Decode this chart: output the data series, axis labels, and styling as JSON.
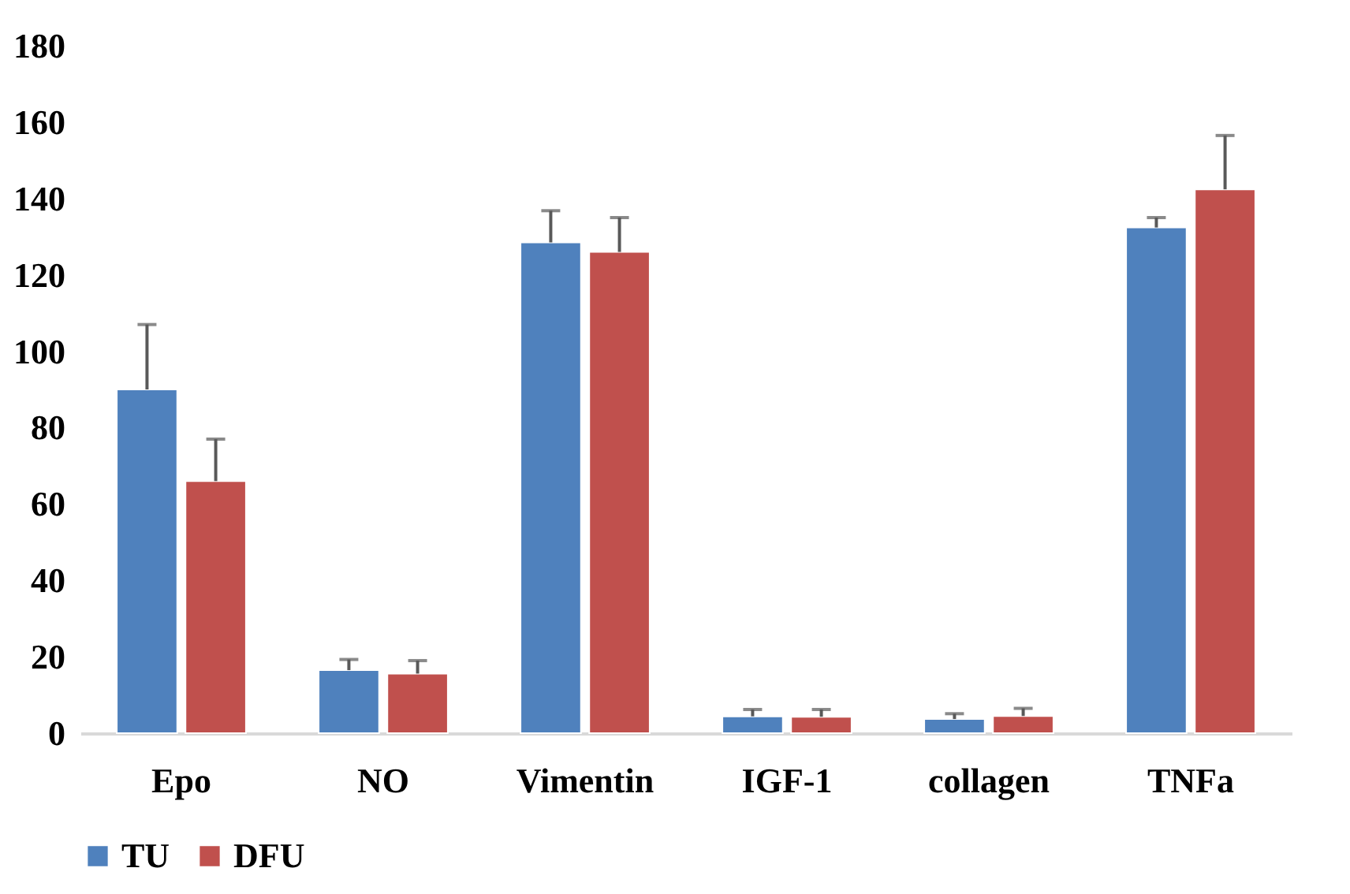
{
  "chart_data": {
    "type": "bar",
    "categories": [
      "Epo",
      "NO",
      "Vimentin",
      "IGF-1",
      "collagen",
      "TNFa"
    ],
    "series": [
      {
        "name": "TU",
        "color": "#4f81bd",
        "values": [
          90,
          16.5,
          128.5,
          4.4,
          3.7,
          132.4
        ],
        "errors": [
          [
            90,
            107
          ],
          [
            16.5,
            19.3
          ],
          [
            128.5,
            136.8
          ],
          [
            4.4,
            6.2
          ],
          [
            3.7,
            5.1
          ],
          [
            132.4,
            135
          ]
        ]
      },
      {
        "name": "DFU",
        "color": "#c0504d",
        "values": [
          66,
          15.6,
          126,
          4.3,
          4.5,
          142.4
        ],
        "errors": [
          [
            66,
            77
          ],
          [
            15.6,
            19
          ],
          [
            126,
            135
          ],
          [
            4.3,
            6.2
          ],
          [
            4.5,
            6.5
          ],
          [
            142.4,
            156.5
          ]
        ]
      }
    ],
    "ylim": [
      0,
      180
    ],
    "yticks": [
      0,
      20,
      40,
      60,
      80,
      100,
      120,
      140,
      160,
      180
    ],
    "grid": false,
    "legend": "bottom"
  }
}
